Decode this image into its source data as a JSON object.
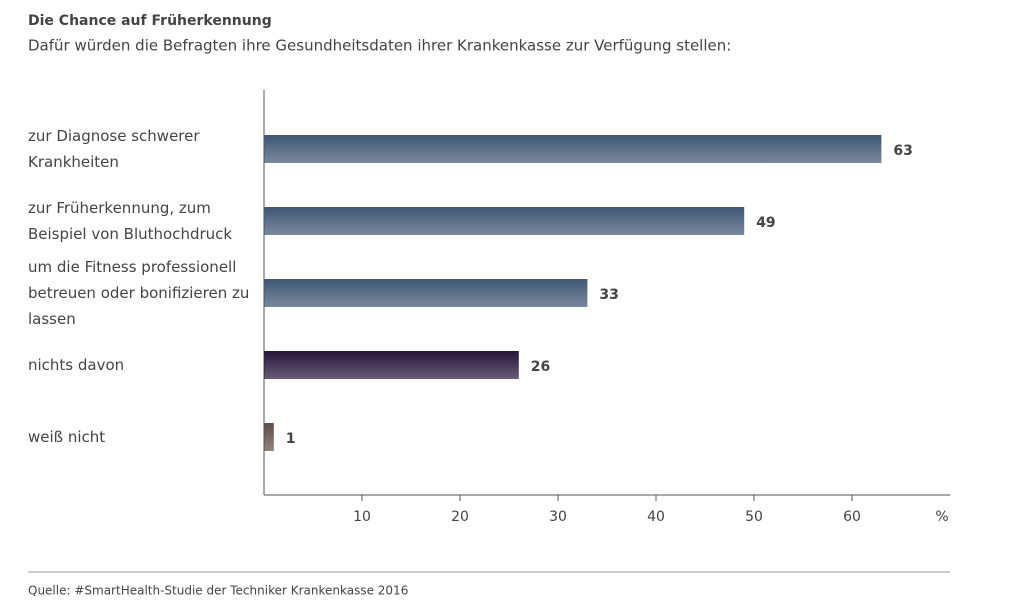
{
  "chart_data": {
    "type": "bar",
    "orientation": "horizontal",
    "title": "Die Chance auf Früherkennung",
    "subtitle": "Dafür würden die Befragten ihre Gesundheitsdaten ihrer Krankenkasse zur Verfügung stellen:",
    "categories": [
      "zur Diagnose schwerer Krankheiten",
      "zur Früherkennung, zum Beispiel von Bluthochdruck",
      "um die Fitness professionell betreuen oder bonifizieren zu lassen",
      "nichts davon",
      "weiß nicht"
    ],
    "values": [
      63,
      49,
      33,
      26,
      1
    ],
    "colors": [
      "#3f5672",
      "#3f5672",
      "#3f5672",
      "#26163a",
      "#5e4d47"
    ],
    "xlim": [
      0,
      70
    ],
    "xticks": [
      10,
      20,
      30,
      40,
      50,
      60
    ],
    "x_unit": "%",
    "source": "Quelle: #SmartHealth-Studie der Techniker Krankenkasse 2016"
  }
}
